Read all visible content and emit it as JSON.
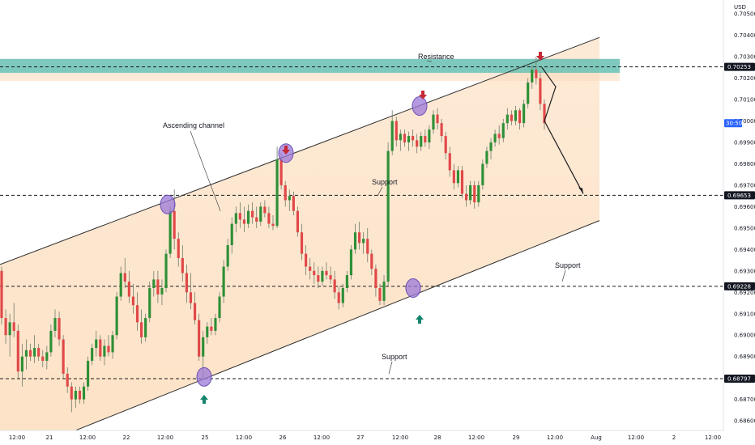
{
  "chart_data": {
    "type": "candlestick",
    "currency": "USD",
    "price_axis": {
      "ticks": [
        0.705,
        0.704,
        0.703,
        0.702,
        0.701,
        0.7,
        0.699,
        0.698,
        0.697,
        0.696,
        0.695,
        0.694,
        0.693,
        0.692,
        0.691,
        0.69,
        0.689,
        0.688,
        0.687,
        0.686
      ],
      "tick_labels": [
        "0.70500",
        "0.70400",
        "0.70300",
        "0.70200",
        "0.70100",
        "0.70000",
        "0.69900",
        "0.69800",
        "0.69700",
        "0.69600",
        "0.69500",
        "0.69400",
        "0.69300",
        "0.69200",
        "0.69100",
        "0.69000",
        "0.68900",
        "0.68800",
        "0.68700",
        "0.68600"
      ],
      "range": [
        0.68555,
        0.70565
      ]
    },
    "time_axis": {
      "tick_labels": [
        "12:00",
        "21",
        "12:00",
        "22",
        "12:00",
        "25",
        "12:00",
        "26",
        "12:00",
        "27",
        "12:00",
        "28",
        "12:00",
        "29",
        "12:00",
        "Aug",
        "12:00",
        "2",
        "12:00"
      ]
    },
    "levels": [
      {
        "price": 0.70253,
        "label": "0.70253",
        "style": "dashed"
      },
      {
        "price": 0.69653,
        "label": "0.69653",
        "style": "dashed"
      },
      {
        "price": 0.69228,
        "label": "0.69228",
        "style": "dashed"
      },
      {
        "price": 0.68797,
        "label": "0.68797",
        "style": "dashed"
      }
    ],
    "current_badge": {
      "text": "30:50",
      "price": 0.6999
    },
    "resistance_zone": {
      "low": 0.70225,
      "high": 0.7029,
      "color": "#67bfb2"
    },
    "channel": {
      "upper": {
        "start": [
          0,
          0.6933
        ],
        "end": [
          740,
          0.7039
        ]
      },
      "lower": {
        "start": [
          90,
          0.6855
        ],
        "end": [
          740,
          0.69535
        ]
      }
    },
    "annotations": [
      {
        "text": "Resistance",
        "arrow_to_price": 0.7028
      },
      {
        "text": "Ascending channel",
        "arrow_to_price": 0.6958
      },
      {
        "text": "Support",
        "arrow_to_price": 0.6965
      },
      {
        "text": "Support",
        "arrow_to_price": 0.6925
      },
      {
        "text": "Support",
        "arrow_to_price": 0.6882
      }
    ],
    "touch_points": [
      {
        "kind": "upper",
        "price": 0.6961
      },
      {
        "kind": "lower",
        "price": 0.68805
      },
      {
        "kind": "upper",
        "price": 0.6985
      },
      {
        "kind": "lower",
        "price": 0.6922
      },
      {
        "kind": "upper",
        "price": 0.7007
      }
    ],
    "signal_arrows": [
      {
        "dir": "down",
        "color": "#c62834"
      },
      {
        "dir": "up",
        "color": "#13846d"
      },
      {
        "dir": "down",
        "color": "#c62834"
      },
      {
        "dir": "up",
        "color": "#13846d"
      },
      {
        "dir": "down",
        "color": "#c62834"
      },
      {
        "dir": "down",
        "color": "#c62834"
      }
    ],
    "projection_path": {
      "prices": [
        0.7025,
        0.7016,
        0.7,
        0.6966
      ]
    },
    "colors": {
      "up": "#2e8f36",
      "down": "#e04848",
      "wick": "#6f7c6a"
    },
    "candles": [
      {
        "o": 0.693,
        "h": 0.6932,
        "l": 0.6905,
        "c": 0.6908
      },
      {
        "o": 0.6908,
        "h": 0.6912,
        "l": 0.6896,
        "c": 0.69
      },
      {
        "o": 0.69,
        "h": 0.691,
        "l": 0.689,
        "c": 0.6906
      },
      {
        "o": 0.6906,
        "h": 0.6915,
        "l": 0.6899,
        "c": 0.6902
      },
      {
        "o": 0.6902,
        "h": 0.6905,
        "l": 0.688,
        "c": 0.6883
      },
      {
        "o": 0.6883,
        "h": 0.6896,
        "l": 0.6876,
        "c": 0.689
      },
      {
        "o": 0.689,
        "h": 0.6898,
        "l": 0.6884,
        "c": 0.6893
      },
      {
        "o": 0.6893,
        "h": 0.6896,
        "l": 0.6888,
        "c": 0.689
      },
      {
        "o": 0.689,
        "h": 0.69,
        "l": 0.6887,
        "c": 0.6894
      },
      {
        "o": 0.6894,
        "h": 0.6896,
        "l": 0.6888,
        "c": 0.689
      },
      {
        "o": 0.689,
        "h": 0.6893,
        "l": 0.6885,
        "c": 0.6888
      },
      {
        "o": 0.6888,
        "h": 0.6895,
        "l": 0.6884,
        "c": 0.6892
      },
      {
        "o": 0.6892,
        "h": 0.6905,
        "l": 0.689,
        "c": 0.6902
      },
      {
        "o": 0.6902,
        "h": 0.6912,
        "l": 0.6899,
        "c": 0.6908
      },
      {
        "o": 0.6908,
        "h": 0.6911,
        "l": 0.6895,
        "c": 0.6898
      },
      {
        "o": 0.6898,
        "h": 0.69,
        "l": 0.688,
        "c": 0.6882
      },
      {
        "o": 0.6882,
        "h": 0.6885,
        "l": 0.6873,
        "c": 0.6876
      },
      {
        "o": 0.6876,
        "h": 0.6878,
        "l": 0.6864,
        "c": 0.687
      },
      {
        "o": 0.687,
        "h": 0.6876,
        "l": 0.6866,
        "c": 0.6874
      },
      {
        "o": 0.6874,
        "h": 0.6876,
        "l": 0.6868,
        "c": 0.687
      },
      {
        "o": 0.687,
        "h": 0.6878,
        "l": 0.6868,
        "c": 0.6876
      },
      {
        "o": 0.6876,
        "h": 0.689,
        "l": 0.6874,
        "c": 0.6888
      },
      {
        "o": 0.6888,
        "h": 0.6896,
        "l": 0.6886,
        "c": 0.6894
      },
      {
        "o": 0.6894,
        "h": 0.6902,
        "l": 0.689,
        "c": 0.6898
      },
      {
        "o": 0.6898,
        "h": 0.69,
        "l": 0.6888,
        "c": 0.689
      },
      {
        "o": 0.689,
        "h": 0.6898,
        "l": 0.6886,
        "c": 0.6895
      },
      {
        "o": 0.6895,
        "h": 0.69,
        "l": 0.689,
        "c": 0.6892
      },
      {
        "o": 0.6892,
        "h": 0.6902,
        "l": 0.6889,
        "c": 0.69
      },
      {
        "o": 0.69,
        "h": 0.692,
        "l": 0.6898,
        "c": 0.6918
      },
      {
        "o": 0.6918,
        "h": 0.6932,
        "l": 0.6916,
        "c": 0.6929
      },
      {
        "o": 0.6929,
        "h": 0.6936,
        "l": 0.6922,
        "c": 0.6925
      },
      {
        "o": 0.6925,
        "h": 0.693,
        "l": 0.6915,
        "c": 0.6918
      },
      {
        "o": 0.6918,
        "h": 0.6924,
        "l": 0.691,
        "c": 0.6914
      },
      {
        "o": 0.6914,
        "h": 0.692,
        "l": 0.6902,
        "c": 0.6906
      },
      {
        "o": 0.6906,
        "h": 0.6912,
        "l": 0.6896,
        "c": 0.6899
      },
      {
        "o": 0.6899,
        "h": 0.691,
        "l": 0.6897,
        "c": 0.6908
      },
      {
        "o": 0.6908,
        "h": 0.6925,
        "l": 0.6906,
        "c": 0.6922
      },
      {
        "o": 0.6922,
        "h": 0.693,
        "l": 0.6918,
        "c": 0.6926
      },
      {
        "o": 0.6926,
        "h": 0.693,
        "l": 0.6915,
        "c": 0.6919
      },
      {
        "o": 0.6919,
        "h": 0.6926,
        "l": 0.6914,
        "c": 0.6922
      },
      {
        "o": 0.6922,
        "h": 0.694,
        "l": 0.692,
        "c": 0.6938
      },
      {
        "o": 0.6938,
        "h": 0.696,
        "l": 0.6936,
        "c": 0.6958
      },
      {
        "o": 0.6958,
        "h": 0.6968,
        "l": 0.694,
        "c": 0.6945
      },
      {
        "o": 0.6945,
        "h": 0.6948,
        "l": 0.6932,
        "c": 0.6936
      },
      {
        "o": 0.6936,
        "h": 0.6942,
        "l": 0.6925,
        "c": 0.6929
      },
      {
        "o": 0.6929,
        "h": 0.6933,
        "l": 0.6915,
        "c": 0.692
      },
      {
        "o": 0.692,
        "h": 0.6929,
        "l": 0.6912,
        "c": 0.6915
      },
      {
        "o": 0.6915,
        "h": 0.692,
        "l": 0.6905,
        "c": 0.6907
      },
      {
        "o": 0.6907,
        "h": 0.691,
        "l": 0.6888,
        "c": 0.689
      },
      {
        "o": 0.689,
        "h": 0.6902,
        "l": 0.6879,
        "c": 0.6899
      },
      {
        "o": 0.6899,
        "h": 0.6906,
        "l": 0.6896,
        "c": 0.6904
      },
      {
        "o": 0.6904,
        "h": 0.6908,
        "l": 0.69,
        "c": 0.6902
      },
      {
        "o": 0.6902,
        "h": 0.691,
        "l": 0.69,
        "c": 0.6908
      },
      {
        "o": 0.6908,
        "h": 0.692,
        "l": 0.6906,
        "c": 0.6918
      },
      {
        "o": 0.6918,
        "h": 0.6935,
        "l": 0.6915,
        "c": 0.6932
      },
      {
        "o": 0.6932,
        "h": 0.6945,
        "l": 0.693,
        "c": 0.6942
      },
      {
        "o": 0.6942,
        "h": 0.6955,
        "l": 0.6938,
        "c": 0.6952
      },
      {
        "o": 0.6952,
        "h": 0.696,
        "l": 0.6948,
        "c": 0.6957
      },
      {
        "o": 0.6957,
        "h": 0.6962,
        "l": 0.695,
        "c": 0.6954
      },
      {
        "o": 0.6954,
        "h": 0.696,
        "l": 0.6948,
        "c": 0.6952
      },
      {
        "o": 0.6952,
        "h": 0.6961,
        "l": 0.695,
        "c": 0.6958
      },
      {
        "o": 0.6958,
        "h": 0.6962,
        "l": 0.6952,
        "c": 0.6955
      },
      {
        "o": 0.6955,
        "h": 0.696,
        "l": 0.695,
        "c": 0.6953
      },
      {
        "o": 0.6953,
        "h": 0.6962,
        "l": 0.6951,
        "c": 0.696
      },
      {
        "o": 0.696,
        "h": 0.6963,
        "l": 0.6955,
        "c": 0.6957
      },
      {
        "o": 0.6957,
        "h": 0.696,
        "l": 0.695,
        "c": 0.6952
      },
      {
        "o": 0.6952,
        "h": 0.6956,
        "l": 0.6949,
        "c": 0.6951
      },
      {
        "o": 0.6951,
        "h": 0.6988,
        "l": 0.695,
        "c": 0.6982
      },
      {
        "o": 0.6982,
        "h": 0.6985,
        "l": 0.6968,
        "c": 0.697
      },
      {
        "o": 0.697,
        "h": 0.6972,
        "l": 0.696,
        "c": 0.6963
      },
      {
        "o": 0.6963,
        "h": 0.6968,
        "l": 0.6958,
        "c": 0.6965
      },
      {
        "o": 0.6965,
        "h": 0.6967,
        "l": 0.6956,
        "c": 0.6958
      },
      {
        "o": 0.6958,
        "h": 0.696,
        "l": 0.6946,
        "c": 0.6948
      },
      {
        "o": 0.6948,
        "h": 0.6952,
        "l": 0.6935,
        "c": 0.6938
      },
      {
        "o": 0.6938,
        "h": 0.6942,
        "l": 0.6928,
        "c": 0.6932
      },
      {
        "o": 0.6932,
        "h": 0.6936,
        "l": 0.6926,
        "c": 0.693
      },
      {
        "o": 0.693,
        "h": 0.6934,
        "l": 0.6924,
        "c": 0.6928
      },
      {
        "o": 0.6928,
        "h": 0.6932,
        "l": 0.6922,
        "c": 0.6925
      },
      {
        "o": 0.6925,
        "h": 0.6932,
        "l": 0.6923,
        "c": 0.693
      },
      {
        "o": 0.693,
        "h": 0.6934,
        "l": 0.6926,
        "c": 0.6928
      },
      {
        "o": 0.6928,
        "h": 0.6932,
        "l": 0.6924,
        "c": 0.6926
      },
      {
        "o": 0.6926,
        "h": 0.693,
        "l": 0.6917,
        "c": 0.692
      },
      {
        "o": 0.692,
        "h": 0.6923,
        "l": 0.6912,
        "c": 0.6915
      },
      {
        "o": 0.6915,
        "h": 0.6924,
        "l": 0.6913,
        "c": 0.6922
      },
      {
        "o": 0.6922,
        "h": 0.693,
        "l": 0.692,
        "c": 0.6928
      },
      {
        "o": 0.6928,
        "h": 0.6942,
        "l": 0.6926,
        "c": 0.694
      },
      {
        "o": 0.694,
        "h": 0.6952,
        "l": 0.6938,
        "c": 0.6948
      },
      {
        "o": 0.6948,
        "h": 0.6953,
        "l": 0.694,
        "c": 0.6943
      },
      {
        "o": 0.6943,
        "h": 0.6948,
        "l": 0.6938,
        "c": 0.6945
      },
      {
        "o": 0.6945,
        "h": 0.695,
        "l": 0.6934,
        "c": 0.6938
      },
      {
        "o": 0.6938,
        "h": 0.694,
        "l": 0.6928,
        "c": 0.6931
      },
      {
        "o": 0.6931,
        "h": 0.6933,
        "l": 0.6918,
        "c": 0.6922
      },
      {
        "o": 0.6922,
        "h": 0.6924,
        "l": 0.6914,
        "c": 0.6916
      },
      {
        "o": 0.6916,
        "h": 0.6928,
        "l": 0.6914,
        "c": 0.6925
      },
      {
        "o": 0.6925,
        "h": 0.699,
        "l": 0.6923,
        "c": 0.6986
      },
      {
        "o": 0.6986,
        "h": 0.7005,
        "l": 0.6984,
        "c": 0.7
      },
      {
        "o": 0.7,
        "h": 0.7002,
        "l": 0.6988,
        "c": 0.6991
      },
      {
        "o": 0.6991,
        "h": 0.6996,
        "l": 0.6986,
        "c": 0.6994
      },
      {
        "o": 0.6994,
        "h": 0.6996,
        "l": 0.6988,
        "c": 0.699
      },
      {
        "o": 0.699,
        "h": 0.6995,
        "l": 0.6986,
        "c": 0.6993
      },
      {
        "o": 0.6993,
        "h": 0.6996,
        "l": 0.6988,
        "c": 0.6991
      },
      {
        "o": 0.6991,
        "h": 0.6994,
        "l": 0.6985,
        "c": 0.6988
      },
      {
        "o": 0.6988,
        "h": 0.6995,
        "l": 0.6986,
        "c": 0.6993
      },
      {
        "o": 0.6993,
        "h": 0.6996,
        "l": 0.6988,
        "c": 0.699
      },
      {
        "o": 0.699,
        "h": 0.6998,
        "l": 0.6987,
        "c": 0.6996
      },
      {
        "o": 0.6996,
        "h": 0.7005,
        "l": 0.6994,
        "c": 0.7003
      },
      {
        "o": 0.7003,
        "h": 0.7006,
        "l": 0.6996,
        "c": 0.6999
      },
      {
        "o": 0.6999,
        "h": 0.7001,
        "l": 0.699,
        "c": 0.6993
      },
      {
        "o": 0.6993,
        "h": 0.6995,
        "l": 0.6982,
        "c": 0.6985
      },
      {
        "o": 0.6985,
        "h": 0.6988,
        "l": 0.6974,
        "c": 0.6977
      },
      {
        "o": 0.6977,
        "h": 0.698,
        "l": 0.6968,
        "c": 0.6971
      },
      {
        "o": 0.6971,
        "h": 0.6979,
        "l": 0.6969,
        "c": 0.6977
      },
      {
        "o": 0.6977,
        "h": 0.6979,
        "l": 0.6964,
        "c": 0.6966
      },
      {
        "o": 0.6966,
        "h": 0.697,
        "l": 0.696,
        "c": 0.6963
      },
      {
        "o": 0.6963,
        "h": 0.6972,
        "l": 0.6961,
        "c": 0.697
      },
      {
        "o": 0.697,
        "h": 0.6972,
        "l": 0.6959,
        "c": 0.6962
      },
      {
        "o": 0.6962,
        "h": 0.6972,
        "l": 0.696,
        "c": 0.697
      },
      {
        "o": 0.697,
        "h": 0.6982,
        "l": 0.6968,
        "c": 0.698
      },
      {
        "o": 0.698,
        "h": 0.6988,
        "l": 0.6978,
        "c": 0.6986
      },
      {
        "o": 0.6986,
        "h": 0.6992,
        "l": 0.6982,
        "c": 0.699
      },
      {
        "o": 0.699,
        "h": 0.6996,
        "l": 0.6988,
        "c": 0.6994
      },
      {
        "o": 0.6994,
        "h": 0.6998,
        "l": 0.6989,
        "c": 0.6992
      },
      {
        "o": 0.6992,
        "h": 0.7001,
        "l": 0.699,
        "c": 0.6999
      },
      {
        "o": 0.6999,
        "h": 0.7006,
        "l": 0.6996,
        "c": 0.7003
      },
      {
        "o": 0.7003,
        "h": 0.7005,
        "l": 0.6998,
        "c": 0.7
      },
      {
        "o": 0.7,
        "h": 0.7007,
        "l": 0.6998,
        "c": 0.7005
      },
      {
        "o": 0.7005,
        "h": 0.7006,
        "l": 0.6996,
        "c": 0.6999
      },
      {
        "o": 0.6999,
        "h": 0.701,
        "l": 0.6997,
        "c": 0.7008
      },
      {
        "o": 0.7008,
        "h": 0.702,
        "l": 0.7006,
        "c": 0.7018
      },
      {
        "o": 0.7018,
        "h": 0.7026,
        "l": 0.7015,
        "c": 0.7024
      },
      {
        "o": 0.7024,
        "h": 0.703,
        "l": 0.7017,
        "c": 0.702
      },
      {
        "o": 0.702,
        "h": 0.7023,
        "l": 0.7005,
        "c": 0.7008
      },
      {
        "o": 0.7008,
        "h": 0.701,
        "l": 0.6996,
        "c": 0.6999
      }
    ]
  }
}
